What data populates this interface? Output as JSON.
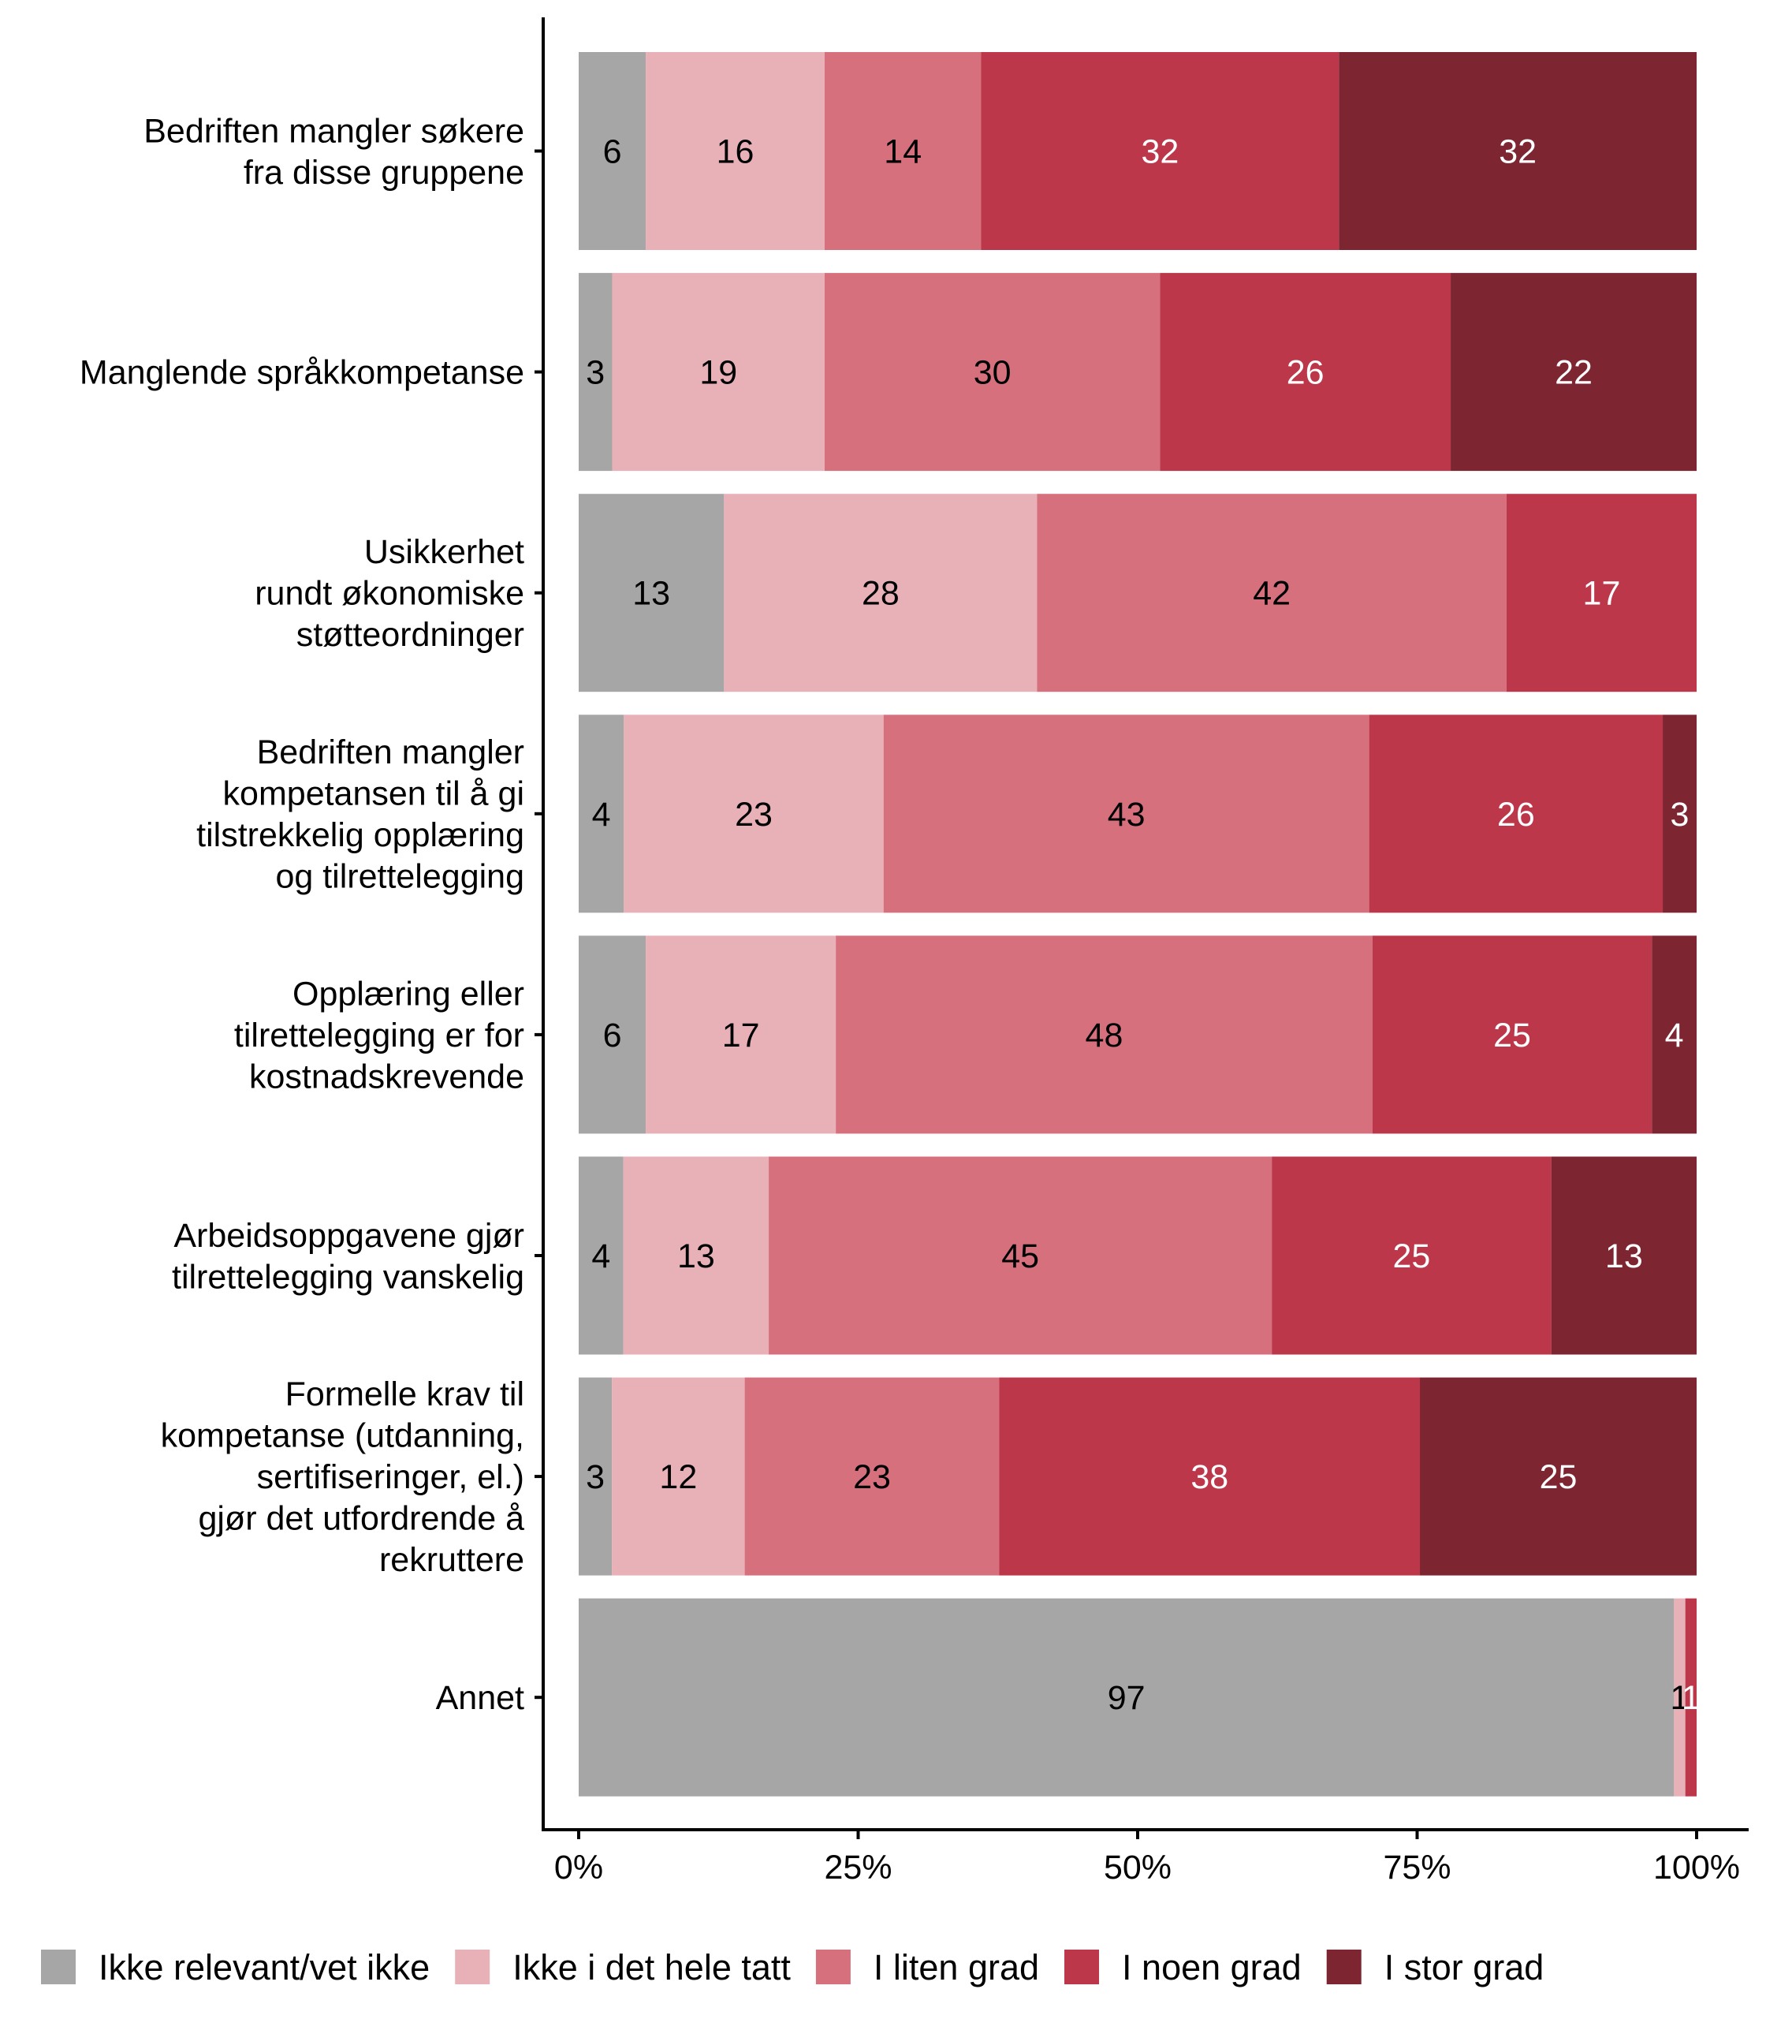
{
  "chart_data": {
    "type": "bar",
    "orientation": "horizontal",
    "stacked": true,
    "percent_scale": true,
    "title": "",
    "xlabel": "",
    "ylabel": "",
    "xlim": [
      0,
      100
    ],
    "x_ticks": [
      "0%",
      "25%",
      "50%",
      "75%",
      "100%"
    ],
    "x_tick_values": [
      0,
      25,
      50,
      75,
      100
    ],
    "grid": false,
    "legend_position": "bottom",
    "categories": [
      [
        "Bedriften mangler søkere",
        "fra disse gruppene"
      ],
      [
        "Manglende språkkompetanse"
      ],
      [
        "Usikkerhet",
        "rundt økonomiske",
        "støtteordninger"
      ],
      [
        "Bedriften mangler",
        "kompetansen til å gi",
        "tilstrekkelig opplæring",
        "og tilrettelegging"
      ],
      [
        "Opplæring eller",
        "tilrettelegging er for",
        "kostnadskrevende"
      ],
      [
        "Arbeidsoppgavene gjør",
        "tilrettelegging vanskelig"
      ],
      [
        "Formelle krav til",
        "kompetanse (utdanning,",
        "sertifiseringer, el.)",
        "gjør det utfordrende å",
        "rekruttere"
      ],
      [
        "Annet"
      ]
    ],
    "series": [
      {
        "name": "Ikke relevant/vet ikke",
        "color": "#A6A6A6",
        "label_color": "#000000",
        "values": [
          6,
          3,
          13,
          4,
          6,
          4,
          3,
          97
        ]
      },
      {
        "name": "Ikke i det hele tatt",
        "color": "#E8B1B7",
        "label_color": "#000000",
        "values": [
          16,
          19,
          28,
          23,
          17,
          13,
          12,
          1
        ]
      },
      {
        "name": "I liten grad",
        "color": "#D6707D",
        "label_color": "#000000",
        "values": [
          14,
          30,
          42,
          43,
          48,
          45,
          23,
          0
        ]
      },
      {
        "name": "I noen grad",
        "color": "#BC374A",
        "label_color": "#FFFFFF",
        "values": [
          32,
          26,
          17,
          26,
          25,
          25,
          38,
          1
        ]
      },
      {
        "name": "I stor grad",
        "color": "#7D2530",
        "label_color": "#FFFFFF",
        "values": [
          32,
          22,
          0,
          3,
          4,
          13,
          25,
          0
        ]
      }
    ]
  }
}
